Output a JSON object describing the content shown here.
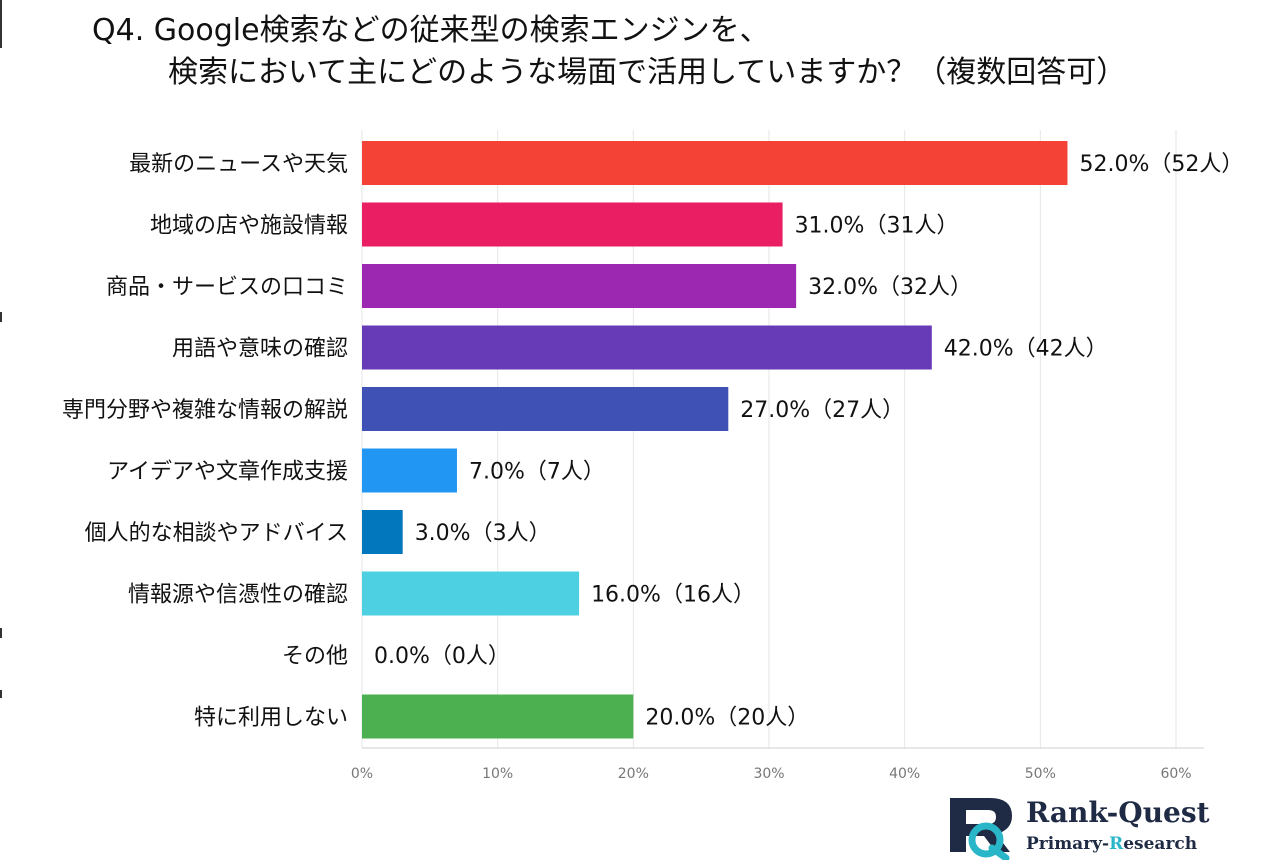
{
  "title": {
    "line1": "Q4. Google検索などの従来型の検索エンジンを、",
    "line2": "検索において主にどのような場面で活用していますか？（複数回答可）"
  },
  "chart_data": {
    "type": "bar",
    "orientation": "horizontal",
    "categories": [
      "最新のニュースや天気",
      "地域の店や施設情報",
      "商品・サービスの口コミ",
      "用語や意味の確認",
      "専門分野や複雑な情報の解説",
      "アイデアや文章作成支援",
      "個人的な相談やアドバイス",
      "情報源や信憑性の確認",
      "その他",
      "特に利用しない"
    ],
    "values": [
      52,
      31,
      32,
      42,
      27,
      7,
      3,
      16,
      0,
      20
    ],
    "data_labels": [
      "52.0%（52人）",
      "31.0%（31人）",
      "32.0%（32人）",
      "42.0%（42人）",
      "27.0%（27人）",
      "7.0%（7人）",
      "3.0%（3人）",
      "16.0%（16人）",
      "0.0%（0人）",
      "20.0%（20人）"
    ],
    "colors": [
      "#f44336",
      "#e91e63",
      "#9c27b0",
      "#673ab7",
      "#3f51b5",
      "#2196f3",
      "#0277bd",
      "#4dd0e1",
      "#9e9e9e",
      "#4caf50"
    ],
    "xlim": [
      0,
      60
    ],
    "xticks": [
      "0%",
      "10%",
      "20%",
      "30%",
      "40%",
      "50%",
      "60%"
    ],
    "grid": true
  },
  "logo": {
    "brand": "Rank-Quest",
    "sub_a": "Primary-",
    "sub_b": "R",
    "sub_c": "esearch"
  }
}
